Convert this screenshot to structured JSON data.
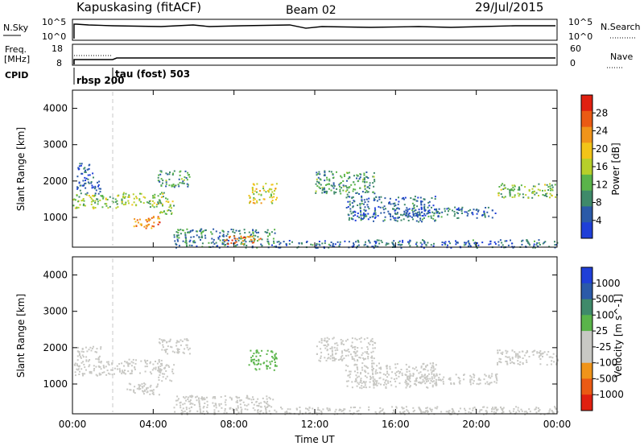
{
  "header": {
    "station": "Kapuskasing (fitACF)",
    "beam": "Beam 02",
    "date": "29/Jul/2015"
  },
  "panels": {
    "nsky": {
      "label": "N.Sky",
      "left_ticks": [
        "10^5",
        "10^0"
      ],
      "right_ticks": [
        "10^5",
        "10^0"
      ],
      "right_label": "N.Search"
    },
    "freq": {
      "label_line1": "Freq.",
      "label_line2": "[MHz]",
      "left_ticks": [
        "18",
        "8"
      ],
      "right_ticks": [
        "60",
        "0"
      ],
      "right_label": "Nave"
    },
    "cpid": {
      "label": "CPID",
      "entries": [
        "rbsp 200",
        "tau (fost) 503"
      ]
    }
  },
  "colors": {
    "power_scale": [
      "#1f3fd8",
      "#2b5aa8",
      "#3f8a6a",
      "#5ab44a",
      "#b7cf2a",
      "#f2c418",
      "#f0941a",
      "#ea5a14",
      "#e02010"
    ],
    "velocity_scale": [
      "#1f3fd8",
      "#2b5aa8",
      "#3f8a6a",
      "#5ab44a",
      "#c8c8c4",
      "#c8c8c4",
      "#f0941a",
      "#ea5a14",
      "#e02010"
    ]
  },
  "chart_data": [
    {
      "type": "heatmap",
      "title": "",
      "xlabel": "",
      "ylabel": "Slant Range [km]",
      "xlim": [
        0,
        24
      ],
      "ylim": [
        180,
        4500
      ],
      "x_tick_values": [
        0,
        4,
        8,
        12,
        16,
        20,
        24
      ],
      "y_tick_values": [
        1000,
        2000,
        3000,
        4000
      ],
      "y_tick_labels": [
        "1000",
        "2000",
        "3000",
        "4000"
      ],
      "colorbar": {
        "label": "Power [dB]",
        "range": [
          0,
          32
        ],
        "ticks": [
          "4",
          "8",
          "12",
          "16",
          "20",
          "24",
          "28"
        ]
      },
      "regions": [
        {
          "t0": 0.0,
          "t1": 2.2,
          "r0": 1250,
          "r1": 1650,
          "value": 14
        },
        {
          "t0": 0.2,
          "t1": 1.4,
          "r0": 1650,
          "r1": 2050,
          "value": 6
        },
        {
          "t0": 0.2,
          "t1": 1.0,
          "r0": 2050,
          "r1": 2500,
          "value": 5
        },
        {
          "t0": 2.2,
          "t1": 4.5,
          "r0": 1300,
          "r1": 1700,
          "value": 15
        },
        {
          "t0": 3.0,
          "t1": 4.3,
          "r0": 700,
          "r1": 1050,
          "value": 24
        },
        {
          "t0": 4.2,
          "t1": 5.8,
          "r0": 1850,
          "r1": 2300,
          "value": 10
        },
        {
          "t0": 4.2,
          "t1": 5.0,
          "r0": 1100,
          "r1": 1550,
          "value": 14
        },
        {
          "t0": 5.0,
          "t1": 10.0,
          "r0": 180,
          "r1": 700,
          "value": 8
        },
        {
          "t0": 7.5,
          "t1": 9.3,
          "r0": 280,
          "r1": 500,
          "value": 25
        },
        {
          "t0": 8.7,
          "t1": 10.1,
          "r0": 1400,
          "r1": 1950,
          "value": 18
        },
        {
          "t0": 10.0,
          "t1": 14.0,
          "r0": 180,
          "r1": 380,
          "value": 6
        },
        {
          "t0": 12.0,
          "t1": 15.0,
          "r0": 1650,
          "r1": 2300,
          "value": 10
        },
        {
          "t0": 13.5,
          "t1": 18.0,
          "r0": 900,
          "r1": 1600,
          "value": 6
        },
        {
          "t0": 14.0,
          "t1": 24.0,
          "r0": 180,
          "r1": 400,
          "value": 6
        },
        {
          "t0": 16.5,
          "t1": 21.0,
          "r0": 1000,
          "r1": 1300,
          "value": 6
        },
        {
          "t0": 21.0,
          "t1": 24.0,
          "r0": 1550,
          "r1": 1950,
          "value": 13
        }
      ]
    },
    {
      "type": "heatmap",
      "title": "",
      "xlabel": "Time UT",
      "ylabel": "Slant Range [km]",
      "xlim": [
        0,
        24
      ],
      "ylim": [
        180,
        4500
      ],
      "x_tick_values": [
        0,
        4,
        8,
        12,
        16,
        20,
        24
      ],
      "x_tick_labels": [
        "00:00",
        "04:00",
        "08:00",
        "12:00",
        "16:00",
        "20:00",
        "00:00"
      ],
      "y_tick_values": [
        1000,
        2000,
        3000,
        4000
      ],
      "y_tick_labels": [
        "1000",
        "2000",
        "3000",
        "4000"
      ],
      "colorbar": {
        "label": "Velocity [m s^-1]",
        "range": [
          -1200,
          1200
        ],
        "ticks": [
          "1000",
          "500",
          "100",
          "25",
          "-25",
          "-100",
          "-500",
          "-1000"
        ]
      },
      "regions": [
        {
          "t0": 0.0,
          "t1": 2.2,
          "r0": 1250,
          "r1": 1650,
          "value": 0
        },
        {
          "t0": 0.2,
          "t1": 1.4,
          "r0": 1650,
          "r1": 2050,
          "value": 0
        },
        {
          "t0": 2.2,
          "t1": 4.5,
          "r0": 1300,
          "r1": 1700,
          "value": 0
        },
        {
          "t0": 2.6,
          "t1": 4.3,
          "r0": 700,
          "r1": 1050,
          "value": -150
        },
        {
          "t0": 4.2,
          "t1": 5.8,
          "r0": 1850,
          "r1": 2300,
          "value": 0
        },
        {
          "t0": 4.2,
          "t1": 5.0,
          "r0": 1100,
          "r1": 1550,
          "value": 80
        },
        {
          "t0": 5.0,
          "t1": 10.0,
          "r0": 180,
          "r1": 700,
          "value": -80
        },
        {
          "t0": 8.7,
          "t1": 10.1,
          "r0": 1400,
          "r1": 1950,
          "value": 200
        },
        {
          "t0": 10.0,
          "t1": 14.0,
          "r0": 180,
          "r1": 380,
          "value": 0
        },
        {
          "t0": 12.0,
          "t1": 15.0,
          "r0": 1650,
          "r1": 2300,
          "value": 0
        },
        {
          "t0": 13.5,
          "t1": 18.0,
          "r0": 900,
          "r1": 1600,
          "value": 0
        },
        {
          "t0": 14.0,
          "t1": 24.0,
          "r0": 180,
          "r1": 400,
          "value": 0
        },
        {
          "t0": 16.5,
          "t1": 21.0,
          "r0": 1000,
          "r1": 1300,
          "value": 0
        },
        {
          "t0": 21.0,
          "t1": 24.0,
          "r0": 1550,
          "r1": 1950,
          "value": 0
        }
      ]
    }
  ]
}
